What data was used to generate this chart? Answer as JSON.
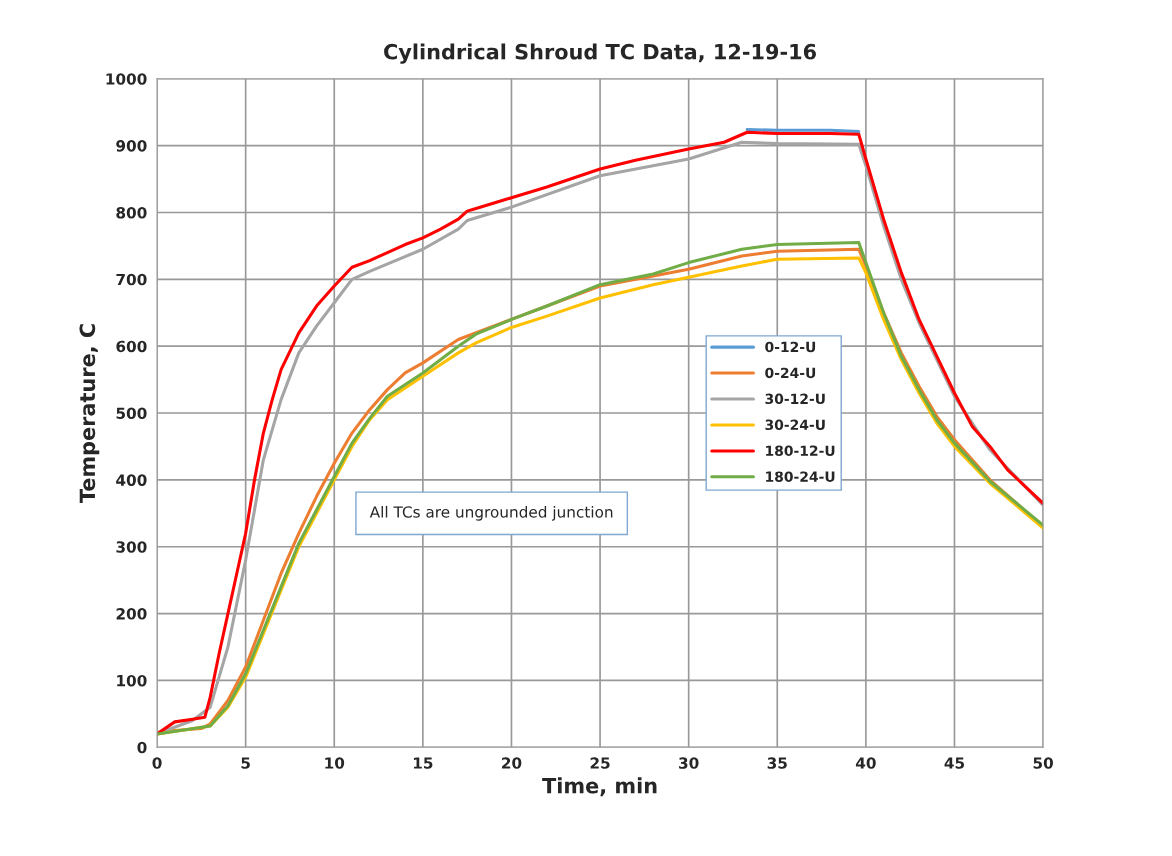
{
  "chart_data": {
    "type": "line",
    "title": "Cylindrical Shroud TC Data, 12-19-16",
    "xlabel": "Time, min",
    "ylabel": "Temperature, C",
    "xlim": [
      0,
      50
    ],
    "xticks": [
      0,
      5,
      10,
      15,
      20,
      25,
      30,
      35,
      40,
      45,
      50
    ],
    "ylim": [
      0,
      1000
    ],
    "yticks": [
      0,
      100,
      200,
      300,
      400,
      500,
      600,
      700,
      800,
      900,
      1000
    ],
    "grid": true,
    "legend": "center right",
    "line_style": "solid",
    "annotations": [
      "All TCs are ungrounded junction"
    ],
    "series": [
      {
        "name": "0-12-U",
        "color": "#5b9bd5",
        "x": [
          33.3,
          35,
          38,
          39.6
        ],
        "values": [
          924,
          923,
          923,
          921
        ]
      },
      {
        "name": "0-24-U",
        "color": "#ed7d31",
        "x": [
          0,
          1,
          2.5,
          3,
          4,
          5,
          6,
          7,
          8,
          9,
          10,
          11,
          12,
          13,
          14,
          15,
          17,
          20,
          22,
          25,
          28,
          30,
          33,
          35,
          39.6,
          40,
          41,
          42,
          43,
          44,
          45,
          47,
          50
        ],
        "values": [
          20,
          25,
          28,
          35,
          70,
          120,
          190,
          260,
          320,
          375,
          425,
          470,
          505,
          535,
          560,
          575,
          610,
          640,
          660,
          690,
          705,
          715,
          735,
          742,
          745,
          720,
          650,
          590,
          540,
          495,
          460,
          400,
          330
        ]
      },
      {
        "name": "30-12-U",
        "color": "#a5a5a5",
        "x": [
          0,
          2,
          3,
          4,
          5,
          6,
          7,
          8,
          9,
          10,
          11,
          12,
          15,
          17,
          17.5,
          20,
          25,
          30,
          33,
          35,
          39.6,
          40,
          41,
          42,
          43,
          44,
          45,
          47,
          50
        ],
        "values": [
          20,
          40,
          60,
          150,
          280,
          430,
          520,
          590,
          630,
          665,
          700,
          712,
          745,
          775,
          788,
          808,
          855,
          880,
          905,
          903,
          902,
          870,
          780,
          700,
          635,
          580,
          525,
          445,
          362
        ]
      },
      {
        "name": "30-24-U",
        "color": "#ffc000",
        "x": [
          0,
          3,
          4,
          5,
          6,
          7,
          8,
          9,
          10,
          11,
          12,
          13,
          15,
          17,
          18,
          20,
          22,
          25,
          28,
          30,
          33,
          35,
          39.6,
          40,
          41,
          42,
          43,
          44,
          45,
          47,
          50
        ],
        "values": [
          20,
          32,
          60,
          105,
          170,
          235,
          300,
          350,
          400,
          450,
          490,
          520,
          555,
          590,
          605,
          628,
          645,
          672,
          692,
          703,
          720,
          730,
          732,
          710,
          640,
          580,
          530,
          485,
          450,
          395,
          328
        ]
      },
      {
        "name": "180-12-U",
        "color": "#ff0000",
        "x": [
          0,
          1,
          2,
          2.7,
          3,
          3.5,
          4,
          4.5,
          5,
          5.5,
          6,
          6.5,
          7,
          8,
          9,
          10,
          11,
          12,
          13,
          14,
          15,
          16,
          17,
          17.5,
          18,
          20,
          22,
          25,
          27,
          30,
          32,
          33.3,
          35,
          38,
          39.6,
          40,
          41,
          42,
          43,
          44,
          45,
          46,
          47,
          48,
          49,
          50
        ],
        "values": [
          20,
          38,
          42,
          45,
          75,
          140,
          200,
          260,
          320,
          400,
          470,
          520,
          565,
          620,
          660,
          690,
          718,
          728,
          740,
          752,
          762,
          775,
          790,
          802,
          806,
          822,
          838,
          865,
          878,
          895,
          905,
          920,
          918,
          918,
          917,
          880,
          790,
          710,
          640,
          585,
          530,
          480,
          450,
          415,
          390,
          365
        ]
      },
      {
        "name": "180-24-U",
        "color": "#70ad47",
        "x": [
          0,
          3,
          4,
          5,
          6,
          7,
          8,
          9,
          10,
          11,
          12,
          13,
          15,
          17,
          18,
          20,
          22,
          25,
          28,
          30,
          33,
          35,
          39.6,
          40,
          41,
          42,
          43,
          44,
          45,
          47,
          50
        ],
        "values": [
          20,
          32,
          62,
          110,
          175,
          240,
          305,
          355,
          405,
          455,
          492,
          525,
          560,
          600,
          618,
          640,
          660,
          692,
          708,
          725,
          745,
          752,
          755,
          725,
          650,
          585,
          535,
          490,
          455,
          398,
          332
        ]
      }
    ]
  }
}
